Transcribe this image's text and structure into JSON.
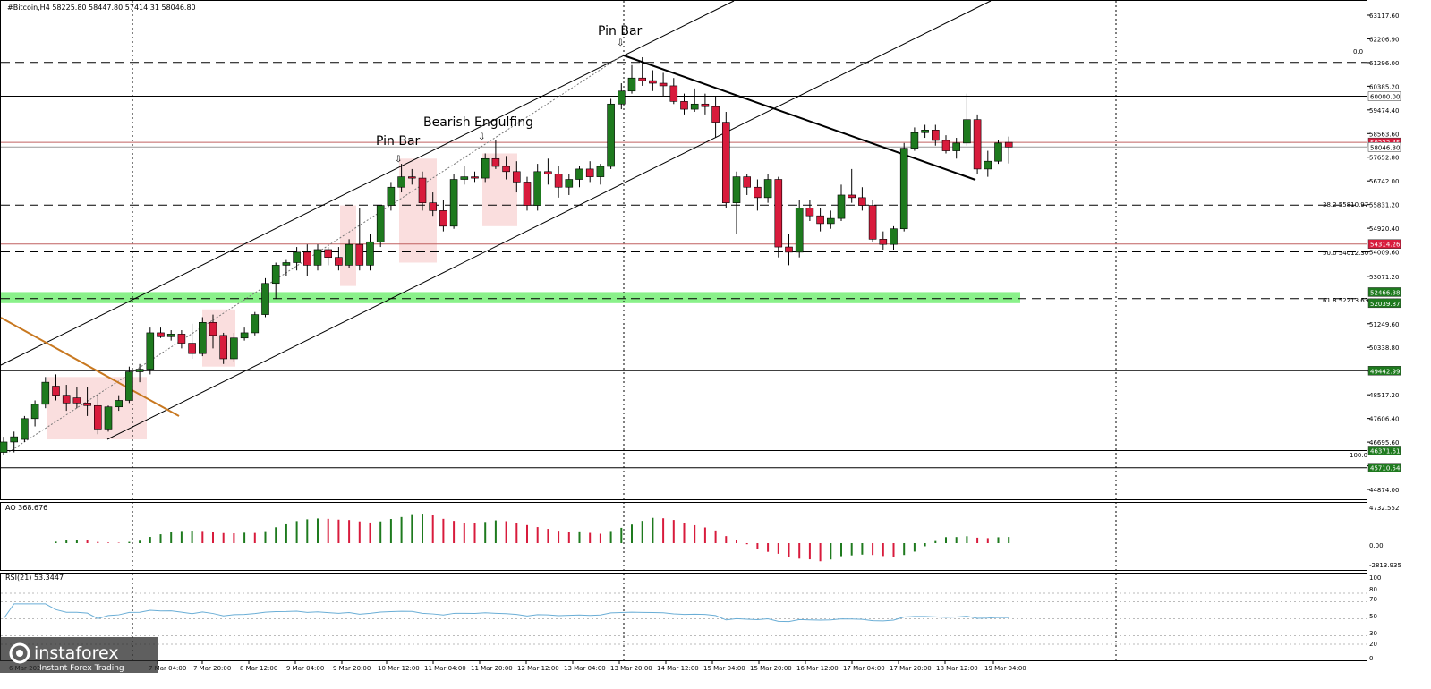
{
  "header": {
    "symbol_line": "#Bitcoin,H4  58225.80 58447.80 57414.31 58046.80"
  },
  "annotations": {
    "pin_bar_top": "Pin Bar",
    "bearish_engulfing": "Bearish Engulfing",
    "pin_bar_mid": "Pin Bar"
  },
  "fib_labels": {
    "f0": "0.0",
    "f382": "38.2  55810.97",
    "f50": "50.0  54012.30",
    "f618": "61.8  52213.63",
    "f100": "100.0"
  },
  "price_badges": {
    "b60000": "60000.00",
    "b58223": "58223.45",
    "b58046": "58046.80",
    "b54314": "54314.26",
    "b52466": "52466.38",
    "b52039": "52039.87",
    "b49442": "49442.99",
    "b46371": "46371.61",
    "b45710": "45710.54"
  },
  "ao": {
    "label": "AO 368.676",
    "ticks": [
      "4732.552",
      "0.00",
      "-2813.935"
    ]
  },
  "rsi": {
    "label": "RSI(21) 53.3447",
    "ticks": [
      "100",
      "80",
      "70",
      "50",
      "30",
      "20",
      "0"
    ]
  },
  "watermark": {
    "brand": "instaforex",
    "tagline": "Instant Forex Trading"
  },
  "colors": {
    "bull": "#1e7a1e",
    "bear": "#d81b3c",
    "support_zone": "#7df07d",
    "trendline_orange": "#c87820",
    "rsi_line": "#6aaed6"
  },
  "chart_data": {
    "type": "candlestick",
    "title": "#Bitcoin,H4",
    "timeframe": "H4",
    "ylim": [
      44874,
      63117
    ],
    "y_ticks": [
      "63117.60",
      "62206.90",
      "61296.00",
      "60385.20",
      "59474.40",
      "58563.60",
      "57652.80",
      "56742.00",
      "55831.20",
      "54920.40",
      "54009.60",
      "53071.20",
      "52160.40",
      "51249.60",
      "50338.80",
      "49428.00",
      "48517.20",
      "47606.40",
      "46695.60",
      "45784.80",
      "44874.00"
    ],
    "x_tick_labels": [
      "6 Mar 2021",
      "7 Mar 04:00",
      "7 Mar 20:00",
      "8 Mar 12:00",
      "9 Mar 04:00",
      "9 Mar 20:00",
      "10 Mar 12:00",
      "11 Mar 04:00",
      "11 Mar 20:00",
      "12 Mar 12:00",
      "13 Mar 04:00",
      "13 Mar 20:00",
      "14 Mar 12:00",
      "15 Mar 04:00",
      "15 Mar 20:00",
      "16 Mar 12:00",
      "17 Mar 04:00",
      "17 Mar 20:00",
      "18 Mar 12:00",
      "19 Mar 04:00"
    ],
    "ohlc": [
      [
        46300,
        46900,
        46200,
        46700
      ],
      [
        46700,
        47100,
        46300,
        46900
      ],
      [
        46800,
        47700,
        46700,
        47600
      ],
      [
        47600,
        48300,
        47300,
        48150
      ],
      [
        48150,
        49200,
        48000,
        49000
      ],
      [
        48850,
        49300,
        48300,
        48500
      ],
      [
        48500,
        48900,
        47900,
        48200
      ],
      [
        48400,
        48800,
        48000,
        48200
      ],
      [
        48200,
        48800,
        47700,
        48100
      ],
      [
        48100,
        48500,
        47000,
        47200
      ],
      [
        47200,
        48100,
        47100,
        48050
      ],
      [
        48050,
        48500,
        47900,
        48300
      ],
      [
        48300,
        49600,
        48200,
        49400
      ],
      [
        49400,
        49700,
        49000,
        49500
      ],
      [
        49500,
        51100,
        49300,
        50900
      ],
      [
        50900,
        51100,
        50700,
        50750
      ],
      [
        50750,
        51000,
        50600,
        50850
      ],
      [
        50850,
        51000,
        50300,
        50500
      ],
      [
        50500,
        51250,
        49900,
        50100
      ],
      [
        50100,
        51500,
        50000,
        51300
      ],
      [
        51300,
        51600,
        50300,
        50800
      ],
      [
        50800,
        50900,
        49700,
        49900
      ],
      [
        49900,
        50900,
        49800,
        50700
      ],
      [
        50700,
        51100,
        50600,
        50900
      ],
      [
        50900,
        51700,
        50800,
        51600
      ],
      [
        51600,
        53000,
        51500,
        52800
      ],
      [
        52800,
        53600,
        52200,
        53500
      ],
      [
        53500,
        53700,
        53100,
        53600
      ],
      [
        53600,
        54200,
        53300,
        54000
      ],
      [
        54000,
        54300,
        53100,
        53500
      ],
      [
        53500,
        54300,
        53300,
        54100
      ],
      [
        54100,
        54200,
        53500,
        53800
      ],
      [
        53800,
        54200,
        53300,
        53500
      ],
      [
        53500,
        54500,
        53400,
        54300
      ],
      [
        54300,
        55700,
        53300,
        53500
      ],
      [
        53500,
        54700,
        53300,
        54400
      ],
      [
        54400,
        55700,
        54200,
        55800
      ],
      [
        55800,
        56700,
        55600,
        56500
      ],
      [
        56500,
        57400,
        56300,
        56900
      ],
      [
        56900,
        57200,
        56600,
        56850
      ],
      [
        56850,
        57100,
        55600,
        55900
      ],
      [
        55900,
        56300,
        55400,
        55600
      ],
      [
        55600,
        56000,
        54800,
        55000
      ],
      [
        55000,
        57000,
        54900,
        56800
      ],
      [
        56800,
        57300,
        56600,
        56900
      ],
      [
        56900,
        57100,
        56700,
        56850
      ],
      [
        56850,
        57800,
        56700,
        57600
      ],
      [
        57600,
        58300,
        57200,
        57300
      ],
      [
        57300,
        57700,
        56800,
        57100
      ],
      [
        57100,
        57500,
        56300,
        56700
      ],
      [
        56700,
        56900,
        55600,
        55800
      ],
      [
        55800,
        57400,
        55600,
        57100
      ],
      [
        57100,
        57600,
        56600,
        57000
      ],
      [
        57000,
        57300,
        56100,
        56500
      ],
      [
        56500,
        57000,
        56200,
        56800
      ],
      [
        56800,
        57300,
        56500,
        57200
      ],
      [
        57200,
        57500,
        56700,
        56900
      ],
      [
        56900,
        57400,
        56600,
        57300
      ],
      [
        57300,
        59900,
        57200,
        59700
      ],
      [
        59700,
        60500,
        59500,
        60200
      ],
      [
        60200,
        61200,
        60100,
        60700
      ],
      [
        60700,
        61500,
        60400,
        60600
      ],
      [
        60600,
        61000,
        60200,
        60500
      ],
      [
        60500,
        60900,
        60000,
        60400
      ],
      [
        60400,
        60700,
        59700,
        59800
      ],
      [
        59800,
        60100,
        59300,
        59500
      ],
      [
        59500,
        60300,
        59400,
        59700
      ],
      [
        59700,
        60100,
        59300,
        59600
      ],
      [
        59600,
        60000,
        58400,
        59000
      ],
      [
        59000,
        59400,
        55700,
        55900
      ],
      [
        55900,
        57100,
        54700,
        56900
      ],
      [
        56900,
        57000,
        56200,
        56500
      ],
      [
        56500,
        56800,
        55600,
        56100
      ],
      [
        56100,
        57000,
        55900,
        56800
      ],
      [
        56800,
        56900,
        53800,
        54200
      ],
      [
        54200,
        54700,
        53500,
        54000
      ],
      [
        54000,
        56000,
        53800,
        55700
      ],
      [
        55700,
        56000,
        55200,
        55400
      ],
      [
        55400,
        55700,
        54800,
        55100
      ],
      [
        55100,
        55600,
        54900,
        55300
      ],
      [
        55300,
        56600,
        55200,
        56200
      ],
      [
        56200,
        57200,
        55900,
        56100
      ],
      [
        56100,
        56500,
        55600,
        55800
      ],
      [
        55800,
        56000,
        54400,
        54500
      ],
      [
        54500,
        54800,
        54100,
        54300
      ],
      [
        54300,
        55000,
        54100,
        54900
      ],
      [
        54900,
        58200,
        54800,
        58000
      ],
      [
        58000,
        58800,
        57900,
        58600
      ],
      [
        58600,
        58900,
        58400,
        58700
      ],
      [
        58700,
        58900,
        58100,
        58300
      ],
      [
        58300,
        58500,
        57800,
        57900
      ],
      [
        57900,
        58400,
        57600,
        58200
      ],
      [
        58200,
        60100,
        58100,
        59100
      ],
      [
        59100,
        59300,
        57000,
        57200
      ],
      [
        57200,
        57900,
        56900,
        57500
      ],
      [
        57500,
        58300,
        57400,
        58200
      ],
      [
        58225.8,
        58447.8,
        57414.31,
        58046.8
      ]
    ],
    "horizontal_levels": [
      61300,
      60000,
      58223.45,
      58046.8,
      55810.97,
      54314.26,
      54012.3,
      52466.38,
      52213.63,
      52039.87,
      49442.99,
      46371.61,
      45710.54
    ],
    "fibonacci": {
      "0.0": 61300,
      "38.2": 55810.97,
      "50.0": 54012.3,
      "61.8": 52213.63,
      "100.0": 46371.61
    }
  }
}
